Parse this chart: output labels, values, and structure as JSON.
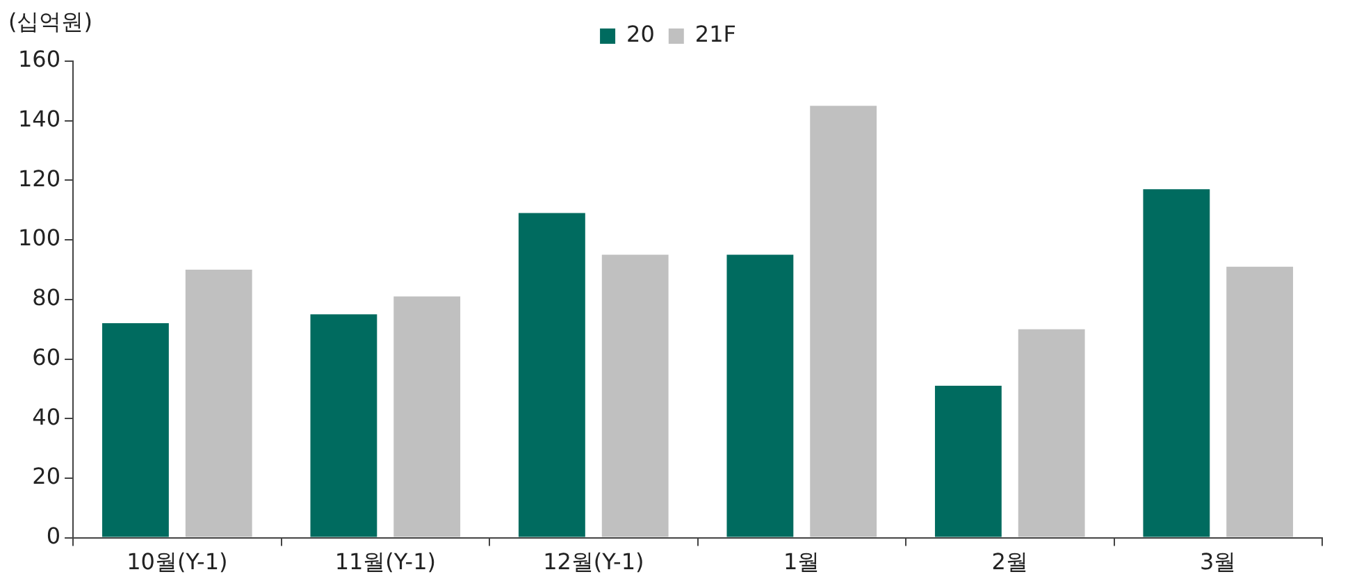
{
  "chart_data": {
    "type": "bar",
    "ylabel": "(십억원)",
    "categories": [
      "10월(Y-1)",
      "11월(Y-1)",
      "12월(Y-1)",
      "1월",
      "2월",
      "3월"
    ],
    "series": [
      {
        "name": "20",
        "color": "#006b5f",
        "values": [
          72,
          75,
          109,
          95,
          51,
          117
        ]
      },
      {
        "name": "21F",
        "color": "#c0c0c0",
        "values": [
          90,
          81,
          95,
          145,
          70,
          91
        ]
      }
    ],
    "ylim": [
      0,
      160
    ],
    "yticks": [
      0,
      20,
      40,
      60,
      80,
      100,
      120,
      140,
      160
    ],
    "grid": false,
    "legend": "top"
  }
}
